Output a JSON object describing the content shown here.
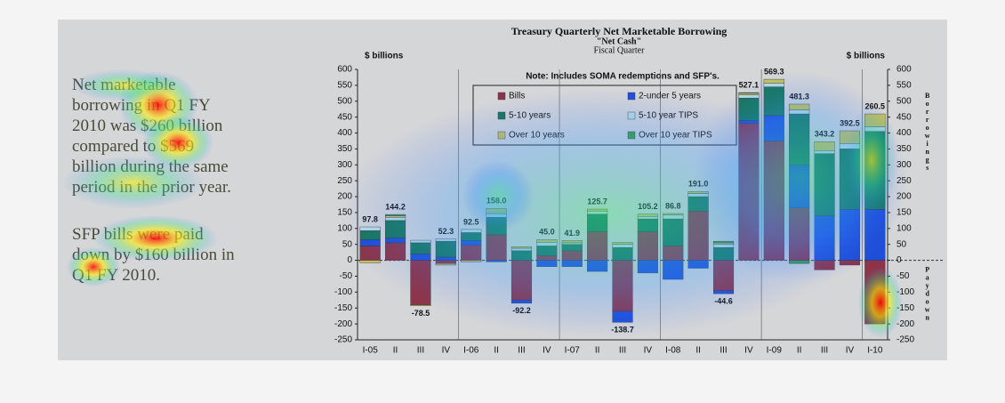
{
  "notes": [
    "Net marketable borrowing in Q1 FY 2010 was $260 billion compared to $569 billion during the same period in the prior year.",
    "SFP bills were paid down by $160 billion in Q1 FY 2010."
  ],
  "chart_data": {
    "type": "stacked_bar",
    "title": "Treasury Quarterly Net Marketable Borrowing",
    "subtitle": "\"Net Cash\"",
    "x_label": "Fiscal Quarter",
    "y_label": "$ billions",
    "y2_label": "$ billions",
    "note": "Note: Includes SOMA redemptions and SFP's.",
    "upper_side_label": "Borrowings",
    "lower_side_label": "Paydown",
    "categories": [
      "I-05",
      "II",
      "III",
      "IV",
      "I-06",
      "II",
      "III",
      "IV",
      "I-07",
      "II",
      "III",
      "IV",
      "I-08",
      "II",
      "III",
      "IV",
      "I-09",
      "II",
      "III",
      "IV",
      "I-10"
    ],
    "series": [
      {
        "name": "Bills",
        "color": "#8e3448",
        "values": [
          45,
          55,
          -140,
          -10,
          47,
          80,
          -125,
          15,
          30,
          90,
          -160,
          90,
          45,
          155,
          -95,
          430,
          375,
          165,
          -30,
          -15,
          -200
        ]
      },
      {
        "name": "2-under 5 years",
        "color": "#1f4ed8",
        "values": [
          20,
          15,
          20,
          10,
          15,
          -5,
          -10,
          -20,
          -20,
          -35,
          -35,
          -40,
          -60,
          -25,
          -10,
          10,
          80,
          135,
          140,
          160,
          160
        ]
      },
      {
        "name": "5-10 years",
        "color": "#17785a",
        "values": [
          28,
          55,
          35,
          50,
          25,
          55,
          30,
          30,
          20,
          55,
          40,
          40,
          85,
          45,
          40,
          70,
          90,
          160,
          195,
          190,
          245
        ]
      },
      {
        "name": "5-10 year TIPS",
        "color": "#b9dde6",
        "values": [
          12,
          10,
          8,
          7,
          10,
          12,
          8,
          12,
          5,
          10,
          10,
          8,
          12,
          10,
          10,
          10,
          12,
          12,
          10,
          17,
          15
        ]
      },
      {
        "name": "Over 10 years",
        "color": "#c9c25a",
        "values": [
          -8,
          5,
          -3,
          -5,
          -5,
          16,
          5,
          8,
          7,
          6,
          6,
          7,
          5,
          6,
          5,
          5,
          12,
          19,
          28,
          40,
          40
        ]
      },
      {
        "name": "Over 10 year TIPS",
        "color": "#3c9c3c",
        "values": [
          0,
          4,
          0,
          0,
          0,
          0,
          0,
          0,
          0,
          0,
          0,
          0,
          0,
          0,
          5,
          2,
          0,
          -10,
          0,
          0,
          0
        ]
      }
    ],
    "total_labels": [
      "97.8",
      "144.2",
      "-78.5",
      "52.3",
      "92.5",
      "158.0",
      "-92.2",
      "45.0",
      "41.9",
      "125.7",
      "-138.7",
      "105.2",
      "86.8",
      "191.0",
      "-44.6",
      "527.1",
      "569.3",
      "481.3",
      "343.2",
      "392.5",
      "260.5"
    ],
    "ylim": [
      -250,
      600
    ],
    "yticks": [
      -250,
      -200,
      -150,
      -100,
      -50,
      0,
      50,
      100,
      150,
      200,
      250,
      300,
      350,
      400,
      450,
      500,
      550,
      600
    ],
    "year_separators": true
  }
}
